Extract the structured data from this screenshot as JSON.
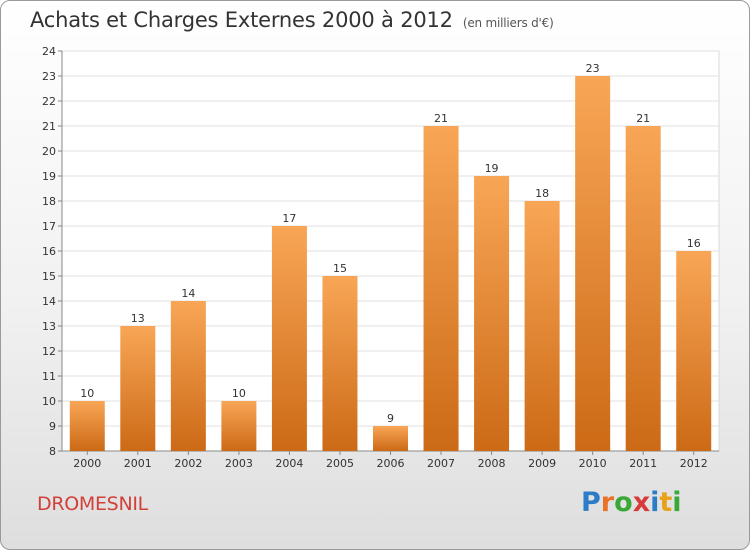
{
  "header": {
    "title": "Achats et Charges Externes 2000 à 2012",
    "unit": "(en milliers d'€)"
  },
  "footer": {
    "commune": "DROMESNIL",
    "brand": "Proxiti"
  },
  "colors": {
    "bar_top": "#f8a656",
    "bar_bottom": "#cc6a16",
    "commune_text": "#d2403a",
    "brand_letters": [
      "#2d7cc7",
      "#e8722a",
      "#3aa837",
      "#d73a3a",
      "#2d7cc7",
      "#e8a21a",
      "#3aa837"
    ]
  },
  "chart_data": {
    "type": "bar",
    "categories": [
      "2000",
      "2001",
      "2002",
      "2003",
      "2004",
      "2005",
      "2006",
      "2007",
      "2008",
      "2009",
      "2010",
      "2011",
      "2012"
    ],
    "values": [
      10,
      13,
      14,
      10,
      17,
      15,
      9,
      21,
      19,
      18,
      23,
      21,
      16
    ],
    "data_labels": [
      "10",
      "13",
      "14",
      "10",
      "17",
      "15",
      "9",
      "21",
      "19",
      "18",
      "23",
      "21",
      "16"
    ],
    "y_ticks": [
      8,
      9,
      10,
      11,
      12,
      13,
      14,
      15,
      16,
      17,
      18,
      19,
      20,
      21,
      22,
      23,
      24
    ],
    "ylim": [
      8,
      24
    ],
    "grid": true,
    "legend": "none"
  }
}
